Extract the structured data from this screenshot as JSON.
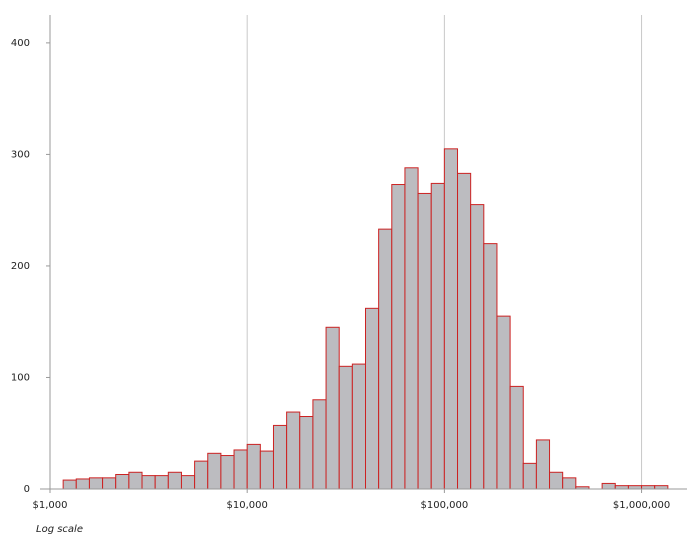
{
  "chart_data": {
    "type": "histogram",
    "log_x": true,
    "annotation": "Log scale",
    "bins": [
      1166,
      1359,
      1585,
      1848,
      2154,
      2512,
      2929,
      3415,
      3981,
      4642,
      5412,
      6310,
      7356,
      8577,
      10000,
      11659,
      13594,
      15849,
      18478,
      21544,
      25119,
      29286,
      34145,
      39811,
      46416,
      54117,
      63096,
      73564,
      85770,
      100000,
      116591,
      135936,
      158489,
      184785,
      215443,
      251189,
      292864,
      341455,
      398107,
      464159,
      541170,
      630957,
      735642,
      857696,
      1000000,
      1165914,
      1359356
    ],
    "values": [
      8,
      9,
      10,
      10,
      13,
      15,
      12,
      12,
      15,
      12,
      25,
      32,
      30,
      35,
      40,
      34,
      57,
      69,
      65,
      80,
      145,
      110,
      112,
      162,
      233,
      273,
      288,
      265,
      274,
      305,
      283,
      255,
      220,
      155,
      92,
      23,
      44,
      15,
      10,
      2,
      0,
      5,
      3,
      3,
      3,
      3
    ],
    "color": "#bcbcc0",
    "edge_color": "#cc2222",
    "xlim": [
      1000,
      1700000
    ],
    "xticks": [
      {
        "value": 1000,
        "label": "$1,000"
      },
      {
        "value": 10000,
        "label": "$10,000"
      },
      {
        "value": 100000,
        "label": "$100,000"
      },
      {
        "value": 1000000,
        "label": "$1,000,000"
      }
    ],
    "ylim": [
      0,
      425
    ],
    "yticks": [
      0,
      100,
      200,
      300,
      400
    ],
    "grid": true
  }
}
